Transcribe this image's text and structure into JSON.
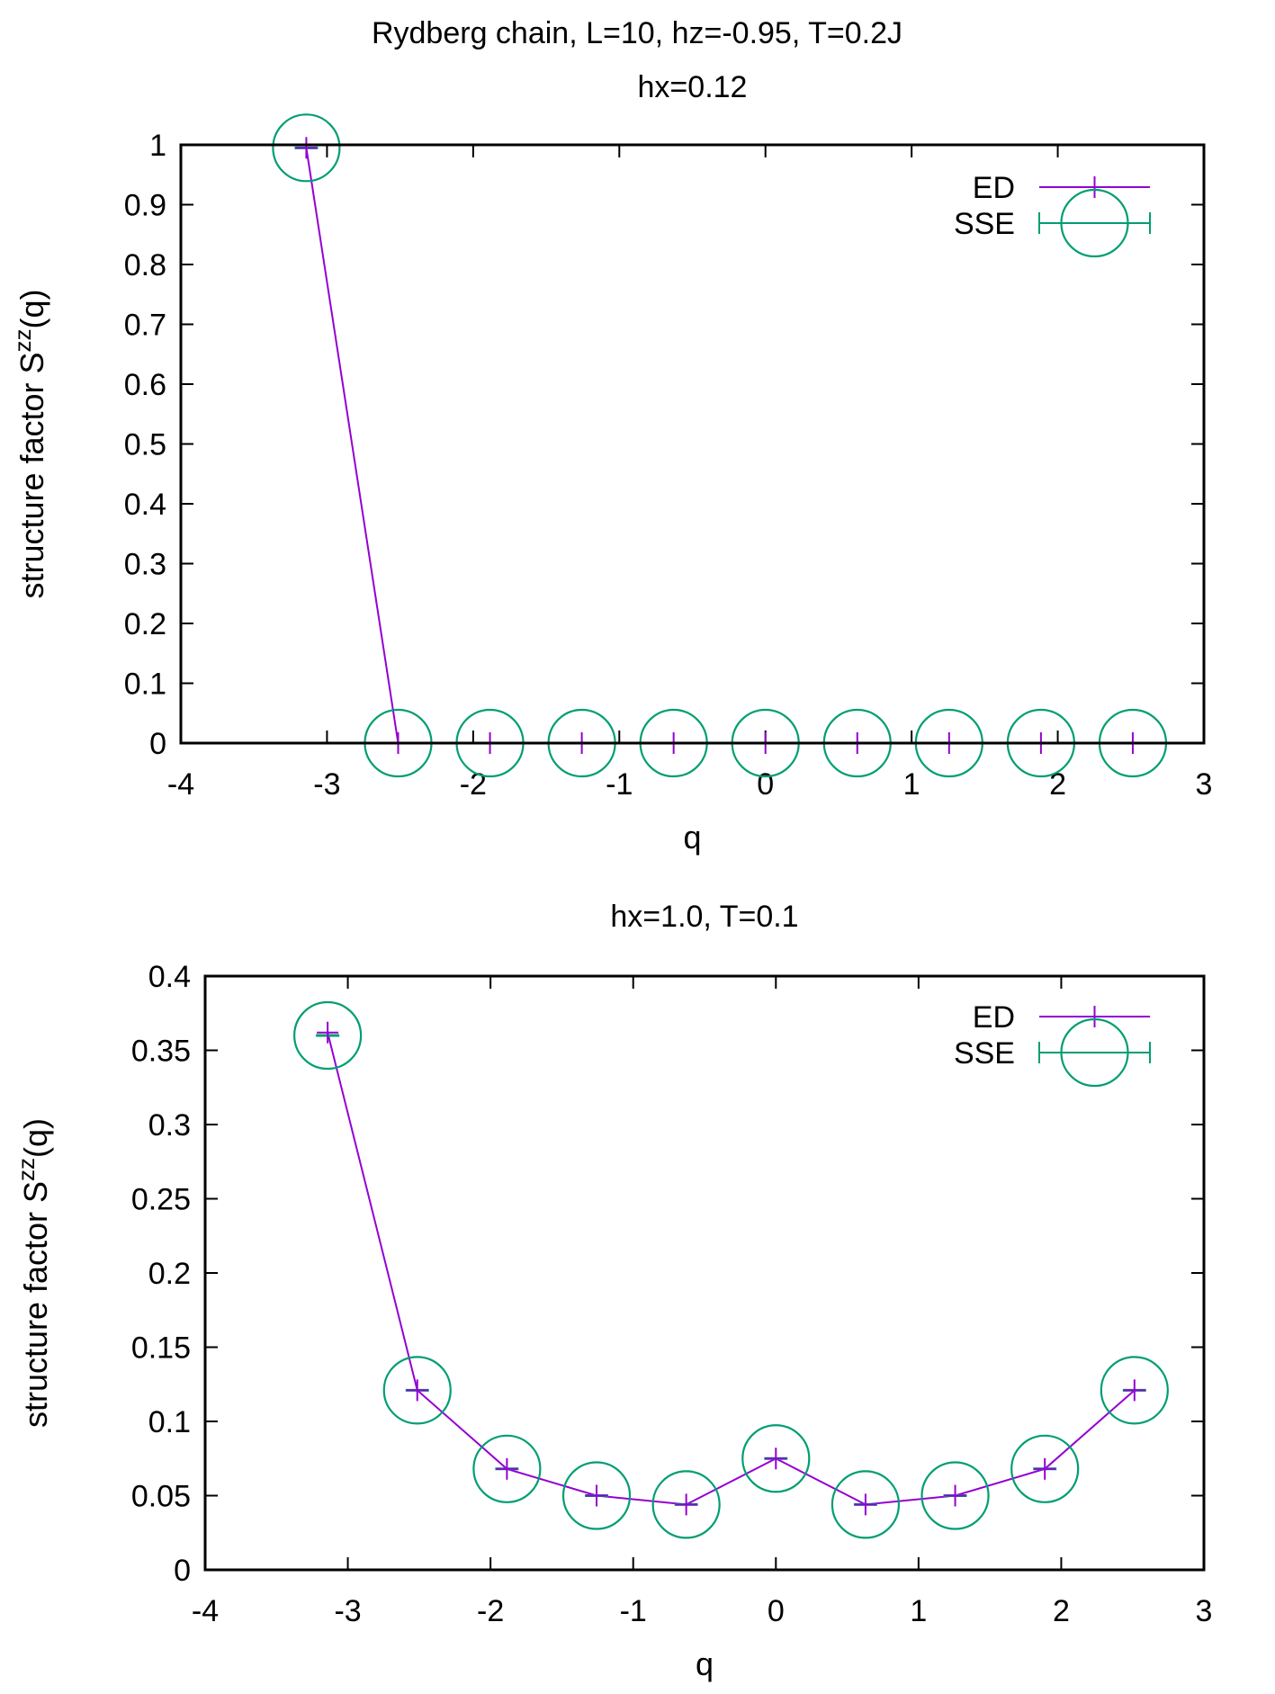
{
  "figure": {
    "suptitle": "Rydberg chain, L=10, hz=-0.95, T=0.2J"
  },
  "colors": {
    "ed": "#9400d3",
    "sse": "#009e73",
    "axis": "#000000"
  },
  "chart_data": [
    {
      "type": "scatter",
      "title": "hx=0.12",
      "xlabel": "q",
      "ylabel_main": "structure factor S",
      "ylabel_sup": "zz",
      "ylabel_tail": "(q)",
      "xlim": [
        -4,
        3
      ],
      "ylim": [
        0,
        1
      ],
      "xticks": [
        "-4",
        "-3",
        "-2",
        "-1",
        "0",
        "1",
        "2",
        "3"
      ],
      "yticks": [
        "0",
        "0.1",
        "0.2",
        "0.3",
        "0.4",
        "0.5",
        "0.6",
        "0.7",
        "0.8",
        "0.9",
        "1"
      ],
      "legend_position": "top-right",
      "x": [
        -3.1416,
        -2.5133,
        -1.885,
        -1.2566,
        -0.6283,
        0.0,
        0.6283,
        1.2566,
        1.885,
        2.5133
      ],
      "series": [
        {
          "name": "ED",
          "style": "linespoints",
          "values": [
            0.995,
            0.0,
            0.0,
            0.0,
            0.0,
            0.0,
            0.0,
            0.0,
            0.0,
            0.0
          ]
        },
        {
          "name": "SSE",
          "style": "errorbars-circles",
          "values": [
            0.995,
            0.0,
            0.0,
            0.0,
            0.0,
            0.0,
            0.0,
            0.0,
            0.0,
            0.0
          ]
        }
      ]
    },
    {
      "type": "scatter",
      "title": "hx=1.0, T=0.1",
      "xlabel": "q",
      "ylabel_main": "structure factor S",
      "ylabel_sup": "zz",
      "ylabel_tail": "(q)",
      "xlim": [
        -4,
        3
      ],
      "ylim": [
        0,
        0.4
      ],
      "xticks": [
        "-4",
        "-3",
        "-2",
        "-1",
        "0",
        "1",
        "2",
        "3"
      ],
      "yticks": [
        "0",
        "0.05",
        "0.1",
        "0.15",
        "0.2",
        "0.25",
        "0.3",
        "0.35",
        "0.4"
      ],
      "legend_position": "top-right",
      "x": [
        -3.1416,
        -2.5133,
        -1.885,
        -1.2566,
        -0.6283,
        0.0,
        0.6283,
        1.2566,
        1.885,
        2.5133
      ],
      "series": [
        {
          "name": "ED",
          "style": "linespoints",
          "values": [
            0.362,
            0.121,
            0.068,
            0.05,
            0.044,
            0.075,
            0.044,
            0.05,
            0.068,
            0.121
          ]
        },
        {
          "name": "SSE",
          "style": "errorbars-circles",
          "values": [
            0.36,
            0.121,
            0.068,
            0.05,
            0.044,
            0.075,
            0.044,
            0.05,
            0.068,
            0.121
          ]
        }
      ]
    }
  ]
}
